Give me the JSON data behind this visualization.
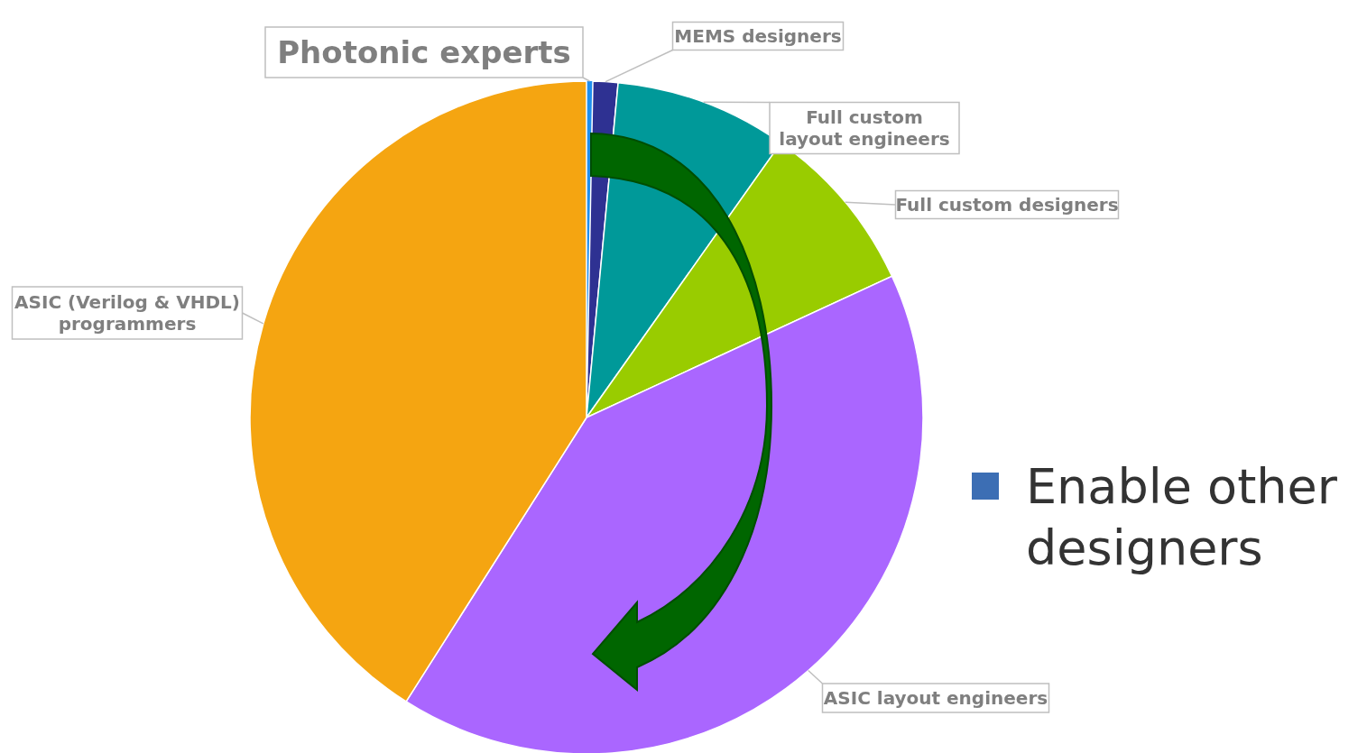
{
  "chart_data": {
    "type": "pie",
    "categories": [
      "Photonic experts",
      "MEMS designers",
      "Full custom layout engineers",
      "Full custom designers",
      "ASIC layout engineers",
      "ASIC (Verilog & VHDL) programmers"
    ],
    "values": [
      0.3,
      1.2,
      8.3,
      8.3,
      40.9,
      41.0
    ],
    "colors": [
      "#1f8fef",
      "#2e3192",
      "#009999",
      "#99cc00",
      "#aa66ff",
      "#f5a511"
    ],
    "annotations": [
      "Enable other designers"
    ]
  }
}
